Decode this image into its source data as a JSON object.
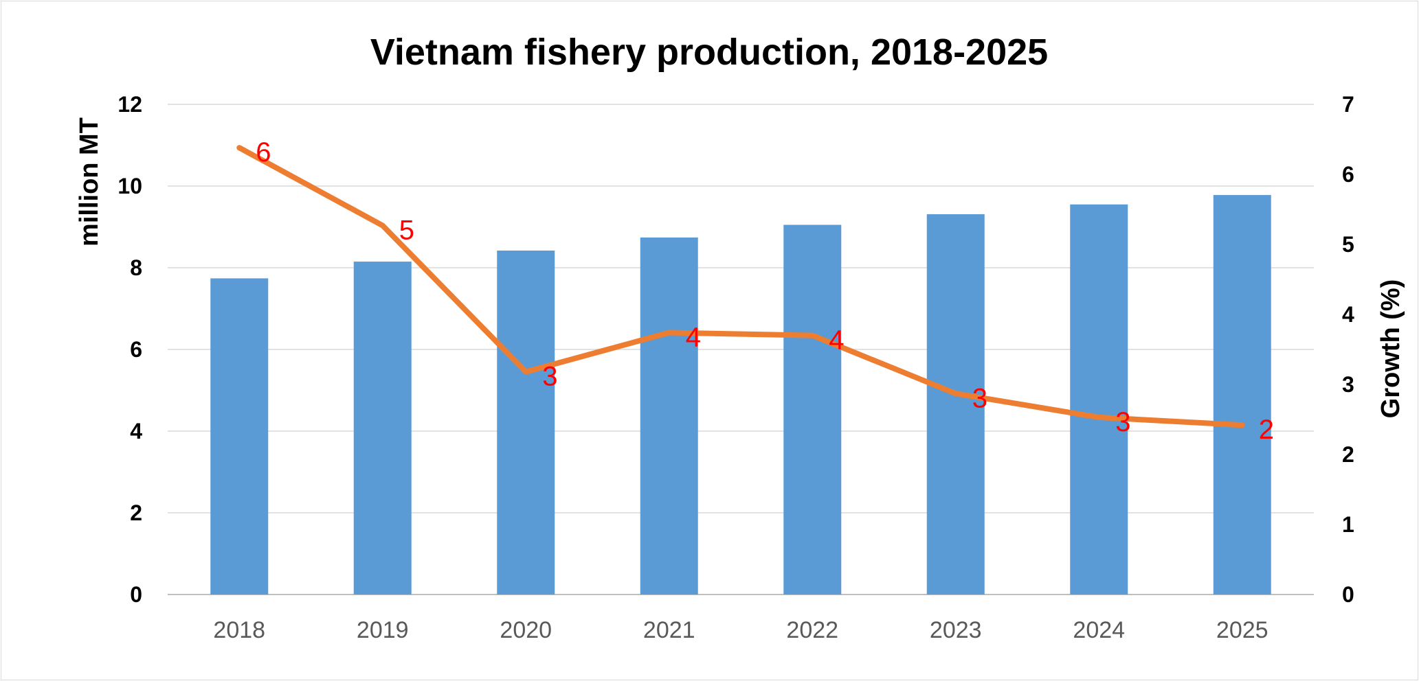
{
  "chart_data": {
    "type": "bar",
    "title": "Vietnam fishery production, 2018-2025",
    "categories": [
      "2018",
      "2019",
      "2020",
      "2021",
      "2022",
      "2023",
      "2024",
      "2025"
    ],
    "y_left": {
      "label": "million MT",
      "ylim": [
        0,
        12
      ],
      "ticks": [
        "0",
        "2",
        "4",
        "6",
        "8",
        "10",
        "12"
      ]
    },
    "y_right": {
      "label": "Growth (%)",
      "ylim": [
        0,
        7
      ],
      "ticks": [
        "0",
        "1",
        "2",
        "3",
        "4",
        "5",
        "6",
        "7"
      ]
    },
    "series": [
      {
        "type": "bar",
        "axis": "left",
        "color": "#5b9bd5",
        "values": [
          7.74,
          8.15,
          8.42,
          8.74,
          9.05,
          9.31,
          9.55,
          9.78
        ]
      },
      {
        "type": "line",
        "axis": "right",
        "color": "#ed7d31",
        "values": [
          6.38,
          5.27,
          3.18,
          3.74,
          3.7,
          2.87,
          2.53,
          2.42
        ],
        "data_labels": [
          "6",
          "5",
          "3",
          "4",
          "4",
          "3",
          "3",
          "2"
        ],
        "data_label_color": "#ff0000"
      }
    ],
    "grid": true,
    "legend": "none"
  }
}
